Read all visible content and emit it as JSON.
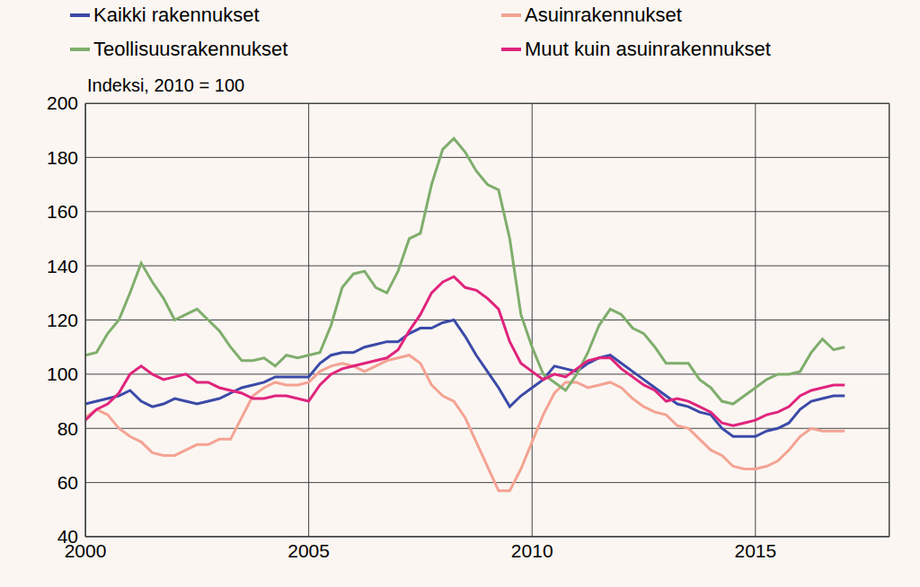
{
  "chart_data": {
    "type": "line",
    "y_label": "Indeksi, 2010 = 100",
    "legend": "top",
    "grid": true,
    "xlim": [
      2000,
      2018
    ],
    "xticks": [
      2000,
      2005,
      2010,
      2015
    ],
    "ylim": [
      40,
      200
    ],
    "yticks": [
      40,
      60,
      80,
      100,
      120,
      140,
      160,
      180,
      200
    ],
    "x": [
      2000,
      2000.25,
      2000.5,
      2000.75,
      2001,
      2001.25,
      2001.5,
      2001.75,
      2002,
      2002.25,
      2002.5,
      2002.75,
      2003,
      2003.25,
      2003.5,
      2003.75,
      2004,
      2004.25,
      2004.5,
      2004.75,
      2005,
      2005.25,
      2005.5,
      2005.75,
      2006,
      2006.25,
      2006.5,
      2006.75,
      2007,
      2007.25,
      2007.5,
      2007.75,
      2008,
      2008.25,
      2008.5,
      2008.75,
      2009,
      2009.25,
      2009.5,
      2009.75,
      2010,
      2010.25,
      2010.5,
      2010.75,
      2011,
      2011.25,
      2011.5,
      2011.75,
      2012,
      2012.25,
      2012.5,
      2012.75,
      2013,
      2013.25,
      2013.5,
      2013.75,
      2014,
      2014.25,
      2014.5,
      2014.75,
      2015,
      2015.25,
      2015.5,
      2015.75,
      2016,
      2016.25,
      2016.5,
      2016.75,
      2017
    ],
    "series": [
      {
        "name": "Kaikki rakennukset",
        "color": "#3b4aa8",
        "values": [
          89,
          90,
          91,
          92,
          94,
          90,
          88,
          89,
          91,
          90,
          89,
          90,
          91,
          93,
          95,
          96,
          97,
          99,
          99,
          99,
          99,
          104,
          107,
          108,
          108,
          110,
          111,
          112,
          112,
          115,
          117,
          117,
          119,
          120,
          114,
          107,
          101,
          95,
          88,
          92,
          95,
          98,
          103,
          102,
          101,
          104,
          106,
          107,
          104,
          101,
          98,
          95,
          92,
          89,
          88,
          86,
          85,
          80,
          77,
          77,
          77,
          79,
          80,
          82,
          87,
          90,
          91,
          92,
          92
        ]
      },
      {
        "name": "Asuinrakennukset",
        "color": "#f4a393",
        "values": [
          84,
          87,
          85,
          80,
          77,
          75,
          71,
          70,
          70,
          72,
          74,
          74,
          76,
          76,
          84,
          92,
          95,
          97,
          96,
          96,
          97,
          101,
          103,
          104,
          103,
          101,
          103,
          105,
          106,
          107,
          104,
          96,
          92,
          90,
          84,
          75,
          66,
          57,
          57,
          65,
          75,
          85,
          93,
          97,
          97,
          95,
          96,
          97,
          95,
          91,
          88,
          86,
          85,
          81,
          80,
          76,
          72,
          70,
          66,
          65,
          65,
          66,
          68,
          72,
          77,
          80,
          79,
          79,
          79
        ]
      },
      {
        "name": "Teollisuusrakennukset",
        "color": "#7fae6c",
        "values": [
          107,
          108,
          115,
          120,
          130,
          141,
          134,
          128,
          120,
          122,
          124,
          120,
          116,
          110,
          105,
          105,
          106,
          103,
          107,
          106,
          107,
          108,
          118,
          132,
          137,
          138,
          132,
          130,
          138,
          150,
          152,
          170,
          183,
          187,
          182,
          175,
          170,
          168,
          150,
          122,
          110,
          100,
          97,
          94,
          100,
          108,
          118,
          124,
          122,
          117,
          115,
          110,
          104,
          104,
          104,
          98,
          95,
          90,
          89,
          92,
          95,
          98,
          100,
          100,
          101,
          108,
          113,
          109,
          110
        ]
      },
      {
        "name": "Muut kuin asuinrakennukset",
        "color": "#e0247d",
        "values": [
          83,
          87,
          89,
          93,
          100,
          103,
          100,
          98,
          99,
          100,
          97,
          97,
          95,
          94,
          93,
          91,
          91,
          92,
          92,
          91,
          90,
          96,
          100,
          102,
          103,
          104,
          105,
          106,
          109,
          116,
          122,
          130,
          134,
          136,
          132,
          131,
          128,
          124,
          112,
          104,
          101,
          98,
          100,
          99,
          102,
          105,
          106,
          106,
          102,
          99,
          96,
          94,
          90,
          91,
          90,
          88,
          86,
          82,
          81,
          82,
          83,
          85,
          86,
          88,
          92,
          94,
          95,
          96,
          96
        ]
      }
    ]
  }
}
